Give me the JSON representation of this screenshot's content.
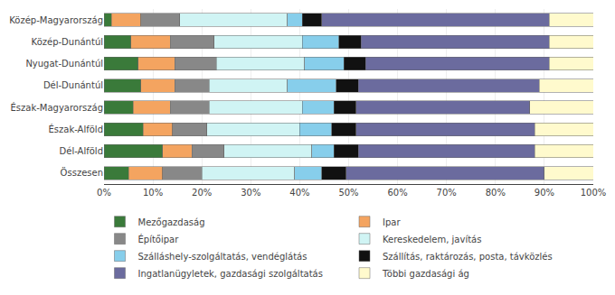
{
  "chart_data": {
    "type": "bar",
    "orientation": "horizontal",
    "stacked": true,
    "categories": [
      "Közép-Magyarország",
      "Közép-Dunántúl",
      "Nyugat-Dunántúl",
      "Dél-Dunántúl",
      "Észak-Magyarország",
      "Észak-Alföld",
      "Dél-Alföld",
      "Összesen"
    ],
    "series": [
      {
        "name": "Mezőgazdaság",
        "color": "#3a7a3a",
        "values": [
          1.5,
          5.5,
          7.0,
          7.5,
          6.0,
          8.0,
          12.0,
          5.0
        ]
      },
      {
        "name": "Ipar",
        "color": "#f4a460",
        "values": [
          6.0,
          8.0,
          7.5,
          7.0,
          7.5,
          6.0,
          6.0,
          7.0
        ]
      },
      {
        "name": "Építőipar",
        "color": "#888888",
        "values": [
          8.0,
          9.0,
          8.5,
          7.0,
          8.0,
          7.0,
          6.5,
          8.0
        ]
      },
      {
        "name": "Kereskedelem, javítás",
        "color": "#d0f4f4",
        "values": [
          22.0,
          18.0,
          18.0,
          16.0,
          19.0,
          19.0,
          18.0,
          19.0
        ]
      },
      {
        "name": "Szálláshely-szolgáltatás, vendéglátás",
        "color": "#87ceeb",
        "values": [
          3.0,
          7.5,
          8.0,
          10.0,
          6.5,
          6.5,
          4.5,
          5.5
        ]
      },
      {
        "name": "Szállítás, raktározás, posta, távközlés",
        "color": "#111111",
        "values": [
          4.0,
          4.5,
          4.5,
          4.5,
          4.5,
          5.0,
          5.0,
          5.0
        ]
      },
      {
        "name": "Ingatlanügyletek, gazdasági szolgáltatás",
        "color": "#6b6b9e",
        "values": [
          46.5,
          38.5,
          37.5,
          37.0,
          35.5,
          36.5,
          36.0,
          40.5
        ]
      },
      {
        "name": "Többi gazdasági ág",
        "color": "#fffacd",
        "values": [
          9.0,
          9.0,
          9.0,
          11.0,
          13.0,
          12.0,
          12.0,
          10.0
        ]
      }
    ],
    "xlim": [
      0,
      100
    ],
    "xticks": [
      {
        "value": 0,
        "label": "0%"
      },
      {
        "value": 10,
        "label": "10%"
      },
      {
        "value": 20,
        "label": "20%"
      },
      {
        "value": 30,
        "label": "30%"
      },
      {
        "value": 40,
        "label": "40%"
      },
      {
        "value": 50,
        "label": "50%"
      },
      {
        "value": 60,
        "label": "60%"
      },
      {
        "value": 70,
        "label": "70%"
      },
      {
        "value": 80,
        "label": "80%"
      },
      {
        "value": 90,
        "label": "90%"
      },
      {
        "value": 100,
        "label": "100%"
      }
    ],
    "grid": true,
    "legend": "bottom"
  }
}
